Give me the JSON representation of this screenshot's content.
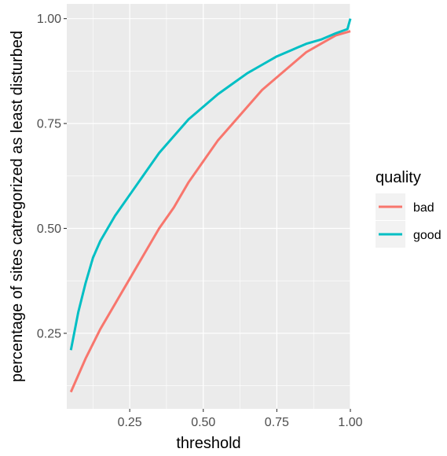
{
  "chart_data": {
    "type": "line",
    "title": "",
    "xlabel": "threshold",
    "ylabel": "percentage of sites catregorized as least disturbed",
    "xlim": [
      0.036,
      1.0
    ],
    "ylim": [
      0.07,
      1.035
    ],
    "x_ticks": [
      0.25,
      0.5,
      0.75,
      1.0
    ],
    "x_tick_labels": [
      "0.25",
      "0.50",
      "0.75",
      "1.00"
    ],
    "y_ticks": [
      0.25,
      0.5,
      0.75,
      1.0
    ],
    "y_tick_labels": [
      "0.25",
      "0.50",
      "0.75",
      "1.00"
    ],
    "grid": true,
    "legend": {
      "title": "quality",
      "position": "right"
    },
    "series": [
      {
        "name": "bad",
        "color": "#F8766D",
        "x": [
          0.05,
          0.1,
          0.15,
          0.2,
          0.25,
          0.3,
          0.35,
          0.4,
          0.45,
          0.5,
          0.55,
          0.6,
          0.65,
          0.7,
          0.75,
          0.8,
          0.85,
          0.9,
          0.95,
          1.0
        ],
        "y": [
          0.11,
          0.19,
          0.26,
          0.32,
          0.38,
          0.44,
          0.5,
          0.55,
          0.61,
          0.66,
          0.71,
          0.75,
          0.79,
          0.83,
          0.86,
          0.89,
          0.92,
          0.94,
          0.96,
          0.97
        ]
      },
      {
        "name": "good",
        "color": "#00BFC4",
        "x": [
          0.05,
          0.075,
          0.1,
          0.125,
          0.15,
          0.175,
          0.2,
          0.25,
          0.3,
          0.35,
          0.4,
          0.45,
          0.5,
          0.55,
          0.6,
          0.65,
          0.7,
          0.75,
          0.8,
          0.85,
          0.9,
          0.95,
          0.99,
          1.0
        ],
        "y": [
          0.21,
          0.3,
          0.37,
          0.43,
          0.47,
          0.5,
          0.53,
          0.58,
          0.63,
          0.68,
          0.72,
          0.76,
          0.79,
          0.82,
          0.845,
          0.87,
          0.89,
          0.91,
          0.925,
          0.94,
          0.95,
          0.965,
          0.975,
          1.0
        ]
      }
    ]
  }
}
